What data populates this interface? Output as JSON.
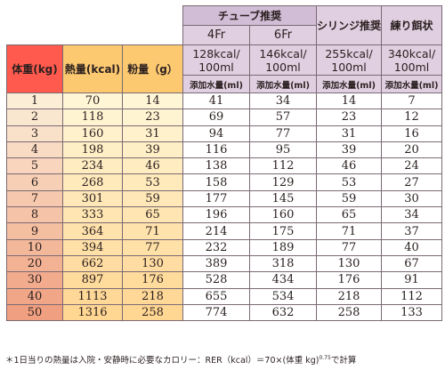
{
  "header": {
    "tube_group": "チューブ推奨",
    "syringe": "シリンジ推奨",
    "paste": "練り餌状",
    "tube_4fr": "4Fr",
    "tube_6fr": "6Fr",
    "col_weight": "体重(kg)",
    "col_energy": "熱量(kcal)",
    "col_powder": "粉量（g）",
    "kcal": [
      {
        "top": "128kcal/",
        "bottom": "100ml"
      },
      {
        "top": "146kcal/",
        "bottom": "100ml"
      },
      {
        "top": "255kcal/",
        "bottom": "100ml"
      },
      {
        "top": "340kcal/",
        "bottom": "100ml"
      }
    ],
    "water_label": "添加水量(ml)"
  },
  "rows": [
    {
      "weight": "1",
      "energy": "70",
      "powder": "14",
      "w128": "41",
      "w146": "34",
      "w255": "14",
      "w340": "7"
    },
    {
      "weight": "2",
      "energy": "118",
      "powder": "23",
      "w128": "69",
      "w146": "57",
      "w255": "23",
      "w340": "12"
    },
    {
      "weight": "3",
      "energy": "160",
      "powder": "31",
      "w128": "94",
      "w146": "77",
      "w255": "31",
      "w340": "16"
    },
    {
      "weight": "4",
      "energy": "198",
      "powder": "39",
      "w128": "116",
      "w146": "95",
      "w255": "39",
      "w340": "20"
    },
    {
      "weight": "5",
      "energy": "234",
      "powder": "46",
      "w128": "138",
      "w146": "112",
      "w255": "46",
      "w340": "24"
    },
    {
      "weight": "6",
      "energy": "268",
      "powder": "53",
      "w128": "158",
      "w146": "129",
      "w255": "53",
      "w340": "27"
    },
    {
      "weight": "7",
      "energy": "301",
      "powder": "59",
      "w128": "177",
      "w146": "145",
      "w255": "59",
      "w340": "30"
    },
    {
      "weight": "8",
      "energy": "333",
      "powder": "65",
      "w128": "196",
      "w146": "160",
      "w255": "65",
      "w340": "34"
    },
    {
      "weight": "9",
      "energy": "364",
      "powder": "71",
      "w128": "214",
      "w146": "175",
      "w255": "71",
      "w340": "37"
    },
    {
      "weight": "10",
      "energy": "394",
      "powder": "77",
      "w128": "232",
      "w146": "189",
      "w255": "77",
      "w340": "40"
    },
    {
      "weight": "20",
      "energy": "662",
      "powder": "130",
      "w128": "389",
      "w146": "318",
      "w255": "130",
      "w340": "67"
    },
    {
      "weight": "30",
      "energy": "897",
      "powder": "176",
      "w128": "528",
      "w146": "434",
      "w255": "176",
      "w340": "91"
    },
    {
      "weight": "40",
      "energy": "1113",
      "powder": "218",
      "w128": "655",
      "w146": "534",
      "w255": "218",
      "w340": "112"
    },
    {
      "weight": "50",
      "energy": "1316",
      "powder": "258",
      "w128": "774",
      "w146": "632",
      "w255": "258",
      "w340": "133"
    }
  ],
  "footnote": {
    "main": "＊1日当りの熱量は入院・安静時に必要なカロリー：RER（kcal）＝70×(体重 kg)",
    "exponent": "0.75",
    "suffix": "で計算"
  }
}
